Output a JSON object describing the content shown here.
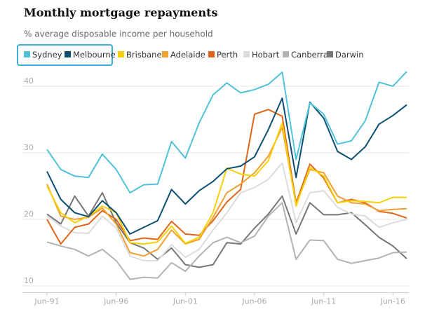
{
  "chart_data": {
    "type": "line",
    "title": "Monthly mortgage repayments",
    "subtitle": "% average disposable income per household",
    "categories": [
      "Jun-91",
      null,
      null,
      null,
      null,
      "Jun-96",
      null,
      null,
      null,
      null,
      "Jun-01",
      null,
      null,
      null,
      null,
      "Jun-06",
      null,
      null,
      null,
      null,
      "Jun-11",
      null,
      null,
      null,
      null,
      "Jun-16",
      null
    ],
    "ylim": [
      9,
      43
    ],
    "yticks": [
      10,
      20,
      30,
      40
    ],
    "grid": true,
    "legend": "top",
    "series": [
      {
        "name": "Sydney",
        "color": "#4fc3d9",
        "values": [
          30.5,
          27.5,
          26.5,
          26.3,
          29.8,
          27.5,
          24,
          25.2,
          25.3,
          31.7,
          29.2,
          34.5,
          38.7,
          40.5,
          39,
          39.5,
          40.3,
          42.1,
          29,
          37.5,
          35.8,
          31.3,
          31.8,
          34.8,
          40.6,
          40,
          42.2
        ]
      },
      {
        "name": "Melbourne",
        "color": "#0d4e73",
        "values": [
          27.2,
          23,
          21,
          20.4,
          22.8,
          21,
          17.8,
          18.8,
          19.8,
          24.5,
          22.3,
          24.3,
          25.7,
          27.6,
          28,
          29.4,
          33.5,
          38.2,
          26.3,
          37.6,
          35.2,
          30.2,
          29,
          30.9,
          34.3,
          35.6,
          37.2
        ]
      },
      {
        "name": "Brisbane",
        "color": "#f5d10a",
        "values": [
          25,
          21,
          19.5,
          20.5,
          22,
          21,
          16.5,
          16.3,
          16.6,
          19,
          16.4,
          17.3,
          21,
          27.7,
          26.8,
          26.5,
          28.8,
          34.5,
          22,
          27.8,
          26.5,
          22.5,
          22.8,
          22.7,
          22.5,
          23.3,
          23.3
        ]
      },
      {
        "name": "Adelaide",
        "color": "#f0a030",
        "values": [
          25.3,
          20.5,
          20,
          20.3,
          21.7,
          19.3,
          15,
          14.5,
          15.5,
          18.4,
          16.3,
          17,
          20.3,
          24,
          25.3,
          27,
          29.5,
          33.8,
          22.3,
          27.5,
          27,
          23.5,
          22.5,
          22.3,
          21.3,
          21.5,
          21.6
        ]
      },
      {
        "name": "Perth",
        "color": "#e0661a",
        "values": [
          20,
          16.3,
          18.8,
          19.3,
          21.3,
          20,
          16.8,
          17.2,
          17,
          19.7,
          17.8,
          17.6,
          19.8,
          22.6,
          24.5,
          35.8,
          36.5,
          35.5,
          22.5,
          28.3,
          26.2,
          22.5,
          23,
          22.5,
          21.2,
          20.9,
          20.2
        ]
      },
      {
        "name": "Hobart",
        "color": "#dcdcdc",
        "values": [
          20.5,
          19,
          18,
          17.9,
          20.5,
          18.7,
          14.5,
          13.8,
          13.8,
          16.2,
          14.3,
          15.5,
          18.4,
          21,
          24,
          24.8,
          26,
          28.5,
          19.5,
          24,
          24.3,
          21.8,
          20.8,
          20.5,
          18.8,
          19.5,
          20
        ]
      },
      {
        "name": "Canberra",
        "color": "#b3b3b3",
        "values": [
          16.6,
          16,
          15.5,
          14.5,
          15.5,
          13.8,
          11,
          11.3,
          11.2,
          13.5,
          12.2,
          14.5,
          16.5,
          17.3,
          16.5,
          17.5,
          20.5,
          22.5,
          14,
          16.9,
          16.8,
          14,
          13.4,
          13.8,
          14.2,
          15,
          15.1
        ]
      },
      {
        "name": "Darwin",
        "color": "#767676",
        "values": [
          20.8,
          19.3,
          23.5,
          20.5,
          24,
          19.5,
          16.5,
          15.7,
          14,
          15.7,
          13.2,
          12.8,
          13.2,
          16.5,
          16.3,
          18.7,
          20.8,
          23.5,
          17.8,
          22.5,
          20.7,
          20.7,
          21,
          19.2,
          17.3,
          16,
          14.1
        ]
      }
    ]
  }
}
